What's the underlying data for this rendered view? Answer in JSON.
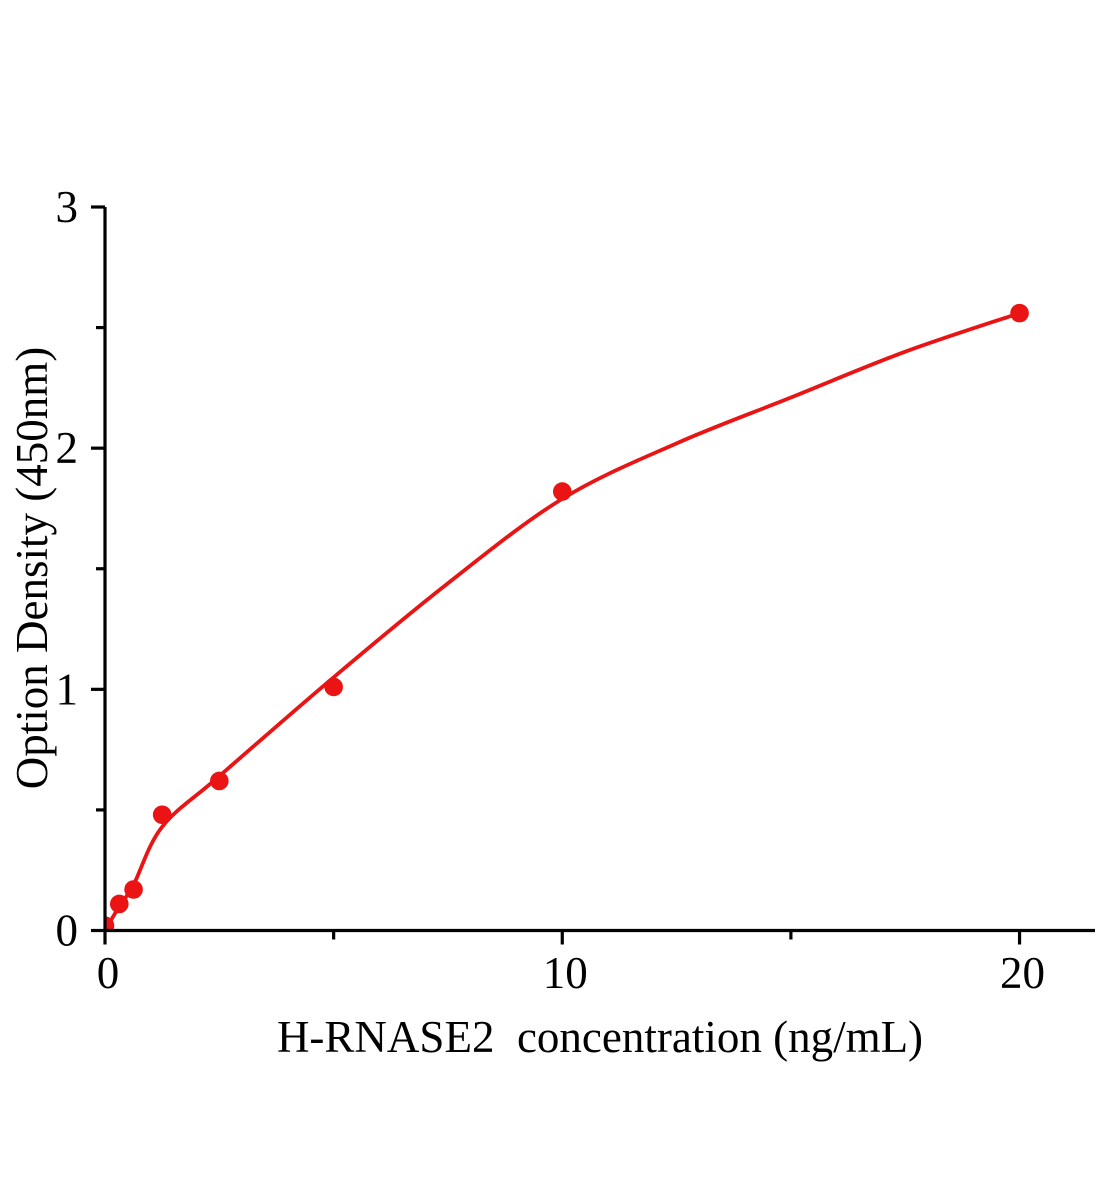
{
  "chart_data": {
    "type": "scatter",
    "title": "",
    "xlabel": "H-RNASE2  concentration (ng/mL)",
    "ylabel": "Option Density (450nm)",
    "xlim": [
      0,
      21.65
    ],
    "ylim": [
      0,
      3
    ],
    "grid": false,
    "legend": null,
    "x_axis": {
      "major_ticks": [
        0,
        10,
        20
      ],
      "major_tick_labels": [
        "0",
        "10",
        "20"
      ],
      "minor_ticks": [
        5,
        15
      ]
    },
    "y_axis": {
      "major_ticks": [
        0,
        1,
        2,
        3
      ],
      "major_tick_labels": [
        "0",
        "1",
        "2",
        "3"
      ],
      "minor_ticks": [
        0.5,
        1.5,
        2.5
      ]
    },
    "series": [
      {
        "name": "standard-data-points",
        "kind": "scatter",
        "color": "#ea1414",
        "marker": "circle",
        "points": [
          [
            0,
            0.02
          ],
          [
            0.3125,
            0.11
          ],
          [
            0.625,
            0.17
          ],
          [
            1.25,
            0.48
          ],
          [
            2.5,
            0.62
          ],
          [
            5,
            1.01
          ],
          [
            10,
            1.82
          ],
          [
            20,
            2.56
          ]
        ]
      },
      {
        "name": "fit-curve",
        "kind": "line",
        "color": "#ea1414",
        "points": [
          [
            0,
            0.0
          ],
          [
            0.3125,
            0.1
          ],
          [
            0.625,
            0.19
          ],
          [
            1.25,
            0.43
          ],
          [
            2.5,
            0.64
          ],
          [
            5,
            1.05
          ],
          [
            7.5,
            1.44
          ],
          [
            10,
            1.79
          ],
          [
            12.5,
            2.02
          ],
          [
            15,
            2.21
          ],
          [
            17.5,
            2.4
          ],
          [
            20,
            2.56
          ]
        ]
      }
    ]
  },
  "colors": {
    "accent_red": "#ea1414",
    "axis": "#000000",
    "background": "#ffffff"
  }
}
